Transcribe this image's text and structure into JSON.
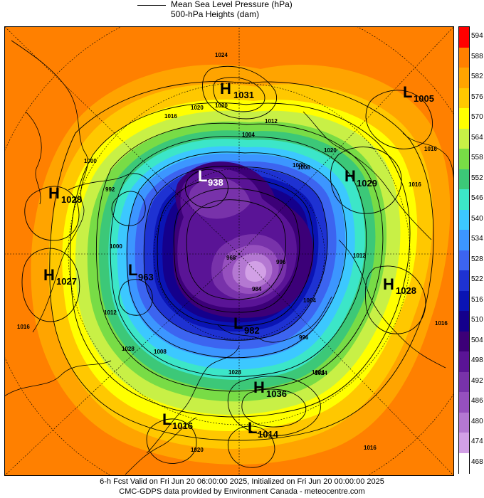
{
  "legend": {
    "mslp_label": "Mean Sea Level Pressure (hPa)",
    "heights_label": "500-hPa Heights (dam)"
  },
  "colorbar": {
    "labels": [
      "594",
      "588",
      "582",
      "576",
      "570",
      "564",
      "558",
      "552",
      "546",
      "540",
      "534",
      "528",
      "522",
      "516",
      "510",
      "504",
      "498",
      "492",
      "486",
      "480",
      "474",
      "468"
    ],
    "colors": [
      "#ff0000",
      "#ff8000",
      "#ffa400",
      "#ffc800",
      "#ffff00",
      "#c8f046",
      "#78dc46",
      "#3cc878",
      "#3ce6c8",
      "#3cc8ff",
      "#3c96ff",
      "#3c64f0",
      "#1e32d2",
      "#0a14b4",
      "#14008c",
      "#3c0078",
      "#5a1496",
      "#7832aa",
      "#9650be",
      "#b478d2",
      "#d2a0e6",
      "#ffffff"
    ]
  },
  "systems": [
    {
      "type": "H",
      "value": "1031"
    },
    {
      "type": "L",
      "value": "1005"
    },
    {
      "type": "L",
      "value": "938"
    },
    {
      "type": "H",
      "value": "1029"
    },
    {
      "type": "H",
      "value": "1028"
    },
    {
      "type": "H",
      "value": "1027"
    },
    {
      "type": "L",
      "value": "963"
    },
    {
      "type": "H",
      "value": "1028"
    },
    {
      "type": "L",
      "value": "982"
    },
    {
      "type": "H",
      "value": "1036"
    },
    {
      "type": "L",
      "value": "1016"
    },
    {
      "type": "L",
      "value": "1014"
    }
  ],
  "isobar_labels": [
    "1024",
    "1020",
    "1016",
    "1012",
    "1008",
    "1004",
    "1000",
    "996",
    "992",
    "984",
    "968",
    "1020",
    "1024",
    "1016",
    "1016",
    "1016",
    "1020",
    "1008",
    "1008",
    "1012",
    "1016",
    "1028",
    "1012",
    "1004",
    "1000",
    "996",
    "1028",
    "1024",
    "1020",
    "1016"
  ],
  "footer": {
    "line1": "6-h Fcst Valid on Fri Jun 20 06:00:00 2025, Initialized on Fri Jun 20 00:00:00 2025",
    "line2": "CMC-GDPS data provided by Environment Canada - meteocentre.com"
  }
}
